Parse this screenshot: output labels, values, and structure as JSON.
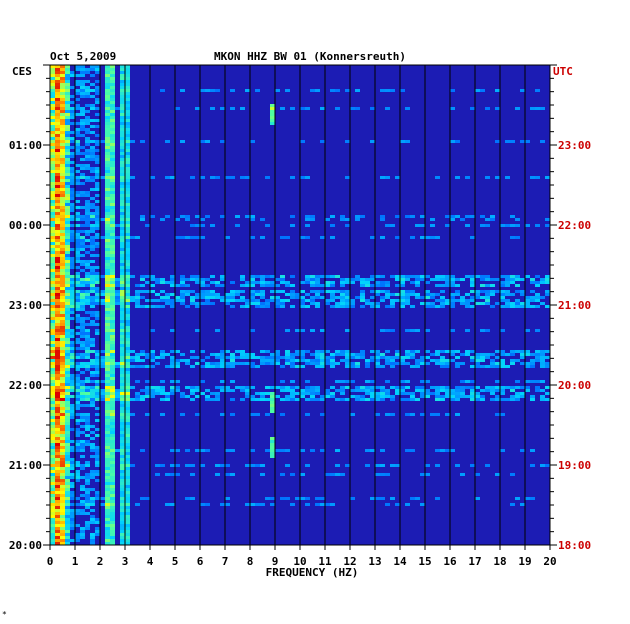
{
  "chart_data": {
    "type": "heatmap",
    "date": "Oct 5,2009",
    "title": "MKON HHZ BW 01 (Konnersreuth)",
    "xlabel": "FREQUENCY (HZ)",
    "xlim": [
      0,
      20
    ],
    "x_ticks": [
      "0",
      "1",
      "2",
      "3",
      "4",
      "5",
      "6",
      "7",
      "8",
      "9",
      "10",
      "11",
      "12",
      "13",
      "14",
      "15",
      "16",
      "17",
      "18",
      "19",
      "20"
    ],
    "left_axis": {
      "label": "CES",
      "ticks": [
        "01:00",
        "00:00",
        "23:00",
        "22:00",
        "21:00",
        "20:00"
      ],
      "color": "#000000"
    },
    "right_axis": {
      "label": "UTC",
      "ticks": [
        "23:00",
        "22:00",
        "21:00",
        "20:00",
        "19:00",
        "18:00"
      ],
      "color": "#cc0000"
    },
    "background_color": "#1c1cb4",
    "grid": true,
    "features": [
      {
        "label": "strong low-frequency energy",
        "freq_range": [
          0,
          0.8
        ]
      },
      {
        "label": "persistent line",
        "freq": 2.4
      },
      {
        "label": "persistent line",
        "freq": 3.0
      },
      {
        "label": "intermittent line",
        "freq": 8.9
      }
    ],
    "footer_mark": "*"
  }
}
